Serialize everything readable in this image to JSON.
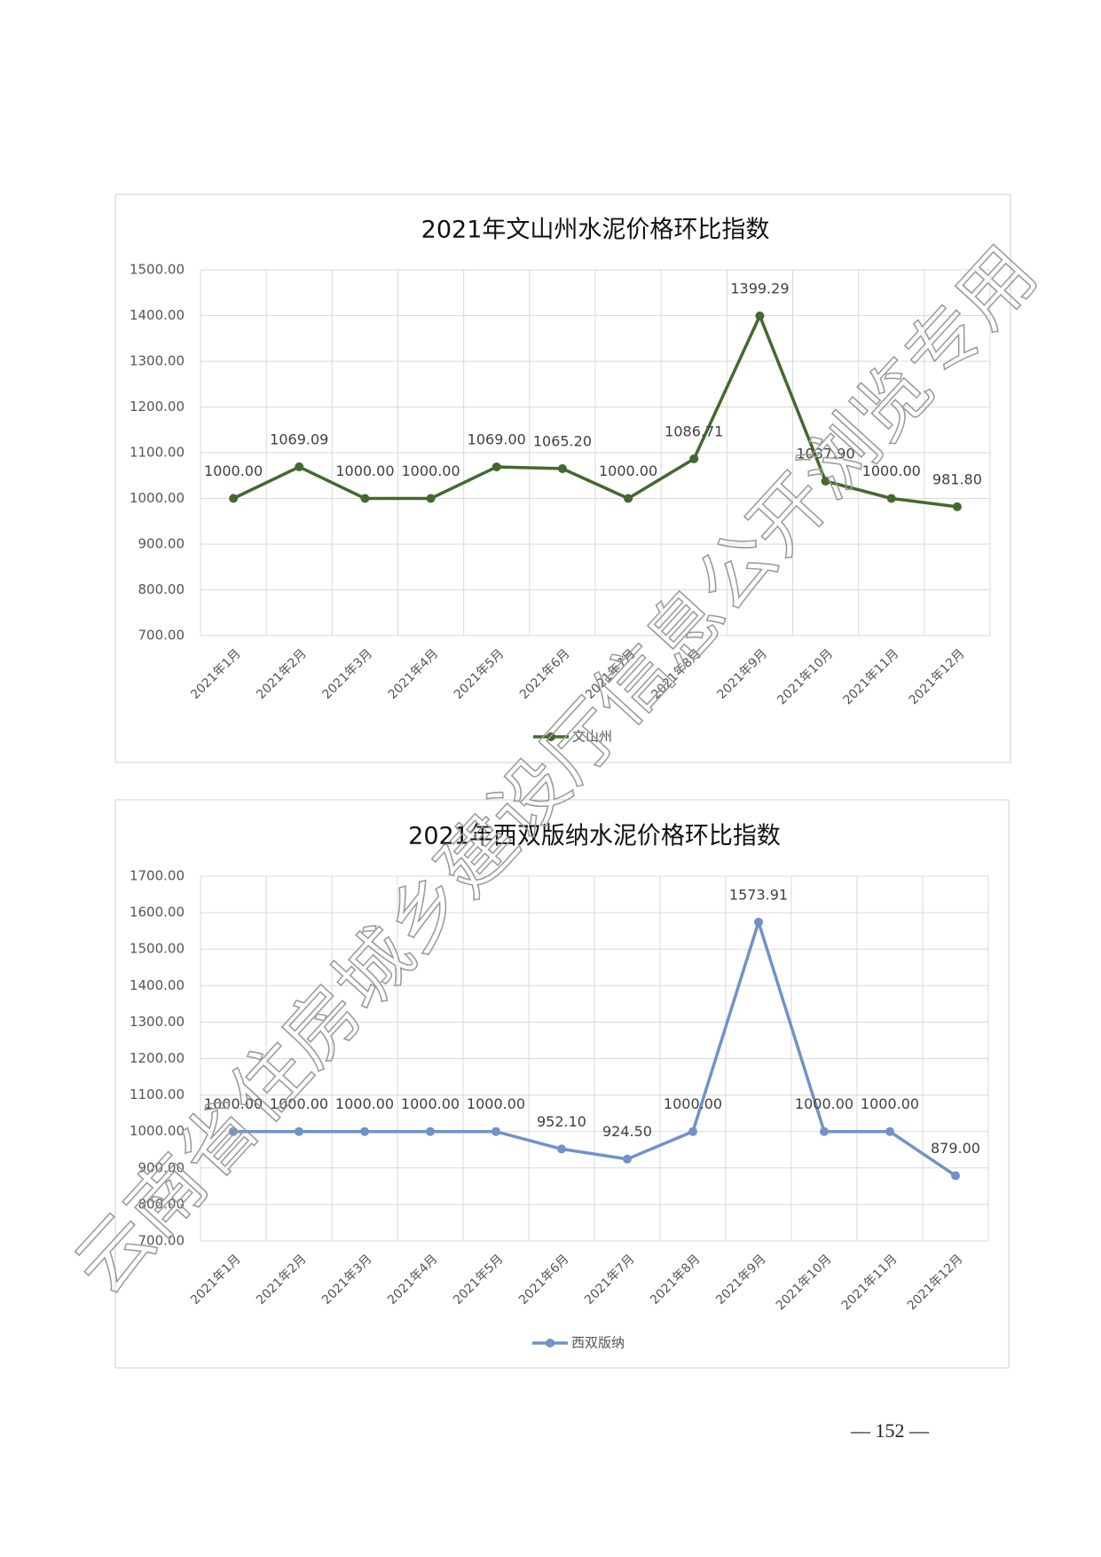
{
  "chart_data": [
    {
      "type": "line",
      "title": "2021年文山州水泥价格环比指数",
      "categories": [
        "2021年1月",
        "2021年2月",
        "2021年3月",
        "2021年4月",
        "2021年5月",
        "2021年6月",
        "2021年7月",
        "2021年8月",
        "2021年9月",
        "2021年10月",
        "2021年11月",
        "2021年12月"
      ],
      "series": [
        {
          "name": "文山州",
          "color": "#43692f",
          "values": [
            1000,
            1069.09,
            1000,
            1000,
            1069,
            1065.2,
            1000,
            1086.71,
            1399.29,
            1037.9,
            1000,
            981.8
          ],
          "value_labels": [
            "1000.00",
            "1069.09",
            "1000.00",
            "1000.00",
            "1069.00",
            "1065.20",
            "1000.00",
            "1086.71",
            "1399.29",
            "1037.90",
            "1000.00",
            "981.80"
          ]
        }
      ],
      "ylim": [
        700,
        1500
      ],
      "yticks": [
        {
          "value": 700,
          "label": "700.00"
        },
        {
          "value": 800,
          "label": "800.00"
        },
        {
          "value": 900,
          "label": "900.00"
        },
        {
          "value": 1000,
          "label": "1000.00"
        },
        {
          "value": 1100,
          "label": "1100.00"
        },
        {
          "value": 1200,
          "label": "1200.00"
        },
        {
          "value": 1300,
          "label": "1300.00"
        },
        {
          "value": 1400,
          "label": "1400.00"
        },
        {
          "value": 1500,
          "label": "1500.00"
        }
      ],
      "grid": true,
      "legend": "bottom"
    },
    {
      "type": "line",
      "title": "2021年西双版纳水泥价格环比指数",
      "categories": [
        "2021年1月",
        "2021年2月",
        "2021年3月",
        "2021年4月",
        "2021年5月",
        "2021年6月",
        "2021年7月",
        "2021年8月",
        "2021年9月",
        "2021年10月",
        "2021年11月",
        "2021年12月"
      ],
      "series": [
        {
          "name": "西双版纳",
          "color": "#7192c8",
          "values": [
            1000,
            1000,
            1000,
            1000,
            1000,
            952.1,
            924.5,
            1000,
            1573.91,
            1000,
            1000,
            879
          ],
          "value_labels": [
            "1000.00",
            "1000.00",
            "1000.00",
            "1000.00",
            "1000.00",
            "952.10",
            "924.50",
            "1000.00",
            "1573.91",
            "1000.00",
            "1000.00",
            "879.00"
          ]
        }
      ],
      "ylim": [
        700,
        1700
      ],
      "yticks": [
        {
          "value": 700,
          "label": "700.00"
        },
        {
          "value": 800,
          "label": "800.00"
        },
        {
          "value": 900,
          "label": "900.00"
        },
        {
          "value": 1000,
          "label": "1000.00"
        },
        {
          "value": 1100,
          "label": "1100.00"
        },
        {
          "value": 1200,
          "label": "1200.00"
        },
        {
          "value": 1300,
          "label": "1300.00"
        },
        {
          "value": 1400,
          "label": "1400.00"
        },
        {
          "value": 1500,
          "label": "1500.00"
        },
        {
          "value": 1600,
          "label": "1600.00"
        },
        {
          "value": 1700,
          "label": "1700.00"
        }
      ],
      "grid": true,
      "legend": "bottom"
    }
  ],
  "page_number": "— 152 —",
  "watermark": "云南省住房城乡建设厅信息公开浏览专用"
}
